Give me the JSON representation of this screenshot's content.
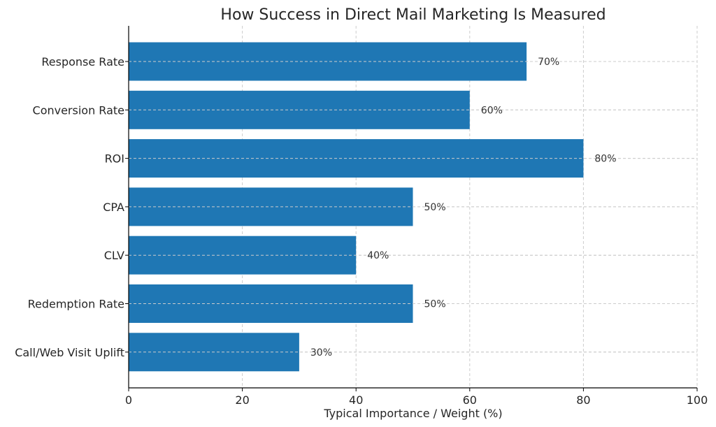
{
  "chart_data": {
    "type": "bar",
    "orientation": "horizontal",
    "title": "How Success in Direct Mail Marketing Is Measured",
    "xlabel": "Typical Importance / Weight (%)",
    "ylabel": "",
    "xlim": [
      0,
      100
    ],
    "xticks": [
      0,
      20,
      40,
      60,
      80,
      100
    ],
    "grid": true,
    "categories": [
      "Response Rate",
      "Conversion Rate",
      "ROI",
      "CPA",
      "CLV",
      "Redemption Rate",
      "Call/Web Visit Uplift"
    ],
    "values": [
      70,
      60,
      80,
      50,
      40,
      50,
      30
    ],
    "value_labels": [
      "70%",
      "60%",
      "80%",
      "50%",
      "40%",
      "50%",
      "30%"
    ],
    "bar_color": "#1f77b4"
  }
}
